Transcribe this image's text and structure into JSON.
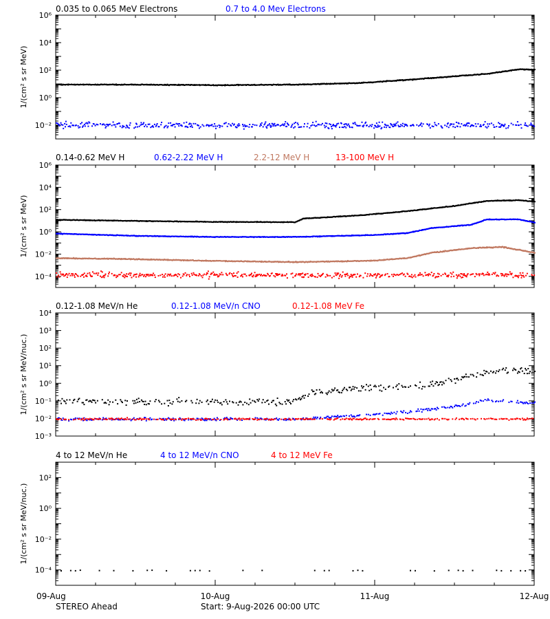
{
  "footer": {
    "spacecraft": "STEREO Ahead",
    "start": "Start:  9-Aug-2026 00:00 UTC"
  },
  "colors": {
    "black": "#000000",
    "blue": "#0000ff",
    "tan": "#c07860",
    "red": "#ff0000"
  },
  "x_tick_labels": [
    "09-Aug",
    "10-Aug",
    "11-Aug",
    "12-Aug"
  ],
  "chart_data": [
    {
      "type": "scatter",
      "panel": "electrons",
      "ylabel": "1/(cm² s sr MeV)",
      "yscale": "log",
      "ylim": [
        0.001,
        1000000
      ],
      "y_tick_exponents": [
        -2,
        0,
        2,
        4,
        6
      ],
      "x_ticks_days": [
        0,
        1,
        2,
        3
      ],
      "series": [
        {
          "name": "0.035 to 0.065 MeV Electrons",
          "color": "black",
          "style": "dense",
          "scatter": 0.03,
          "points": [
            [
              0,
              10
            ],
            [
              0.5,
              10
            ],
            [
              1,
              9
            ],
            [
              1.5,
              10
            ],
            [
              1.9,
              13
            ],
            [
              2.2,
              22
            ],
            [
              2.35,
              30
            ],
            [
              2.5,
              40
            ],
            [
              2.7,
              60
            ],
            [
              2.9,
              130
            ],
            [
              3.0,
              120
            ]
          ]
        },
        {
          "name": "0.7 to 4.0 Mev Electrons",
          "color": "blue",
          "style": "noisy",
          "scatter": 0.22,
          "points": [
            [
              0,
              0.011
            ],
            [
              1,
              0.011
            ],
            [
              2,
              0.011
            ],
            [
              3,
              0.011
            ]
          ]
        }
      ]
    },
    {
      "type": "scatter",
      "panel": "protons",
      "ylabel": "1/(cm² s sr MeV)",
      "yscale": "log",
      "ylim": [
        1e-05,
        1000000
      ],
      "y_tick_exponents": [
        -4,
        -2,
        0,
        2,
        4,
        6
      ],
      "x_ticks_days": [
        0,
        1,
        2,
        3
      ],
      "series": [
        {
          "name": "0.14-0.62 MeV H",
          "color": "black",
          "style": "dense",
          "scatter": 0.03,
          "points": [
            [
              0,
              14
            ],
            [
              0.5,
              11
            ],
            [
              1,
              9
            ],
            [
              1.5,
              8.5
            ],
            [
              1.55,
              18
            ],
            [
              1.9,
              35
            ],
            [
              2.1,
              60
            ],
            [
              2.3,
              120
            ],
            [
              2.5,
              250
            ],
            [
              2.7,
              700
            ],
            [
              2.9,
              800
            ],
            [
              3.0,
              600
            ]
          ]
        },
        {
          "name": "0.62-2.22 MeV H",
          "color": "blue",
          "style": "dense",
          "scatter": 0.03,
          "points": [
            [
              0,
              0.8
            ],
            [
              0.5,
              0.5
            ],
            [
              1,
              0.4
            ],
            [
              1.5,
              0.4
            ],
            [
              2.0,
              0.6
            ],
            [
              2.2,
              0.9
            ],
            [
              2.35,
              2.5
            ],
            [
              2.6,
              5
            ],
            [
              2.7,
              15
            ],
            [
              2.9,
              15
            ],
            [
              3.0,
              8
            ]
          ]
        },
        {
          "name": "2.2-12 MeV H",
          "color": "tan",
          "style": "dense",
          "scatter": 0.04,
          "points": [
            [
              0,
              0.005
            ],
            [
              0.5,
              0.004
            ],
            [
              1,
              0.0028
            ],
            [
              1.5,
              0.0022
            ],
            [
              2.0,
              0.003
            ],
            [
              2.2,
              0.005
            ],
            [
              2.35,
              0.015
            ],
            [
              2.6,
              0.04
            ],
            [
              2.8,
              0.05
            ],
            [
              3.0,
              0.015
            ]
          ]
        },
        {
          "name": "13-100 MeV H",
          "color": "red",
          "style": "noisy",
          "scatter": 0.25,
          "points": [
            [
              0,
              0.00015
            ],
            [
              3.0,
              0.00015
            ]
          ]
        }
      ]
    },
    {
      "type": "scatter",
      "panel": "heavy-low",
      "ylabel": "1/(cm² s sr MeV/nuc.)",
      "yscale": "log",
      "ylim": [
        0.001,
        10000
      ],
      "y_tick_exponents": [
        -3,
        -2,
        -1,
        0,
        1,
        2,
        3,
        4
      ],
      "x_ticks_days": [
        0,
        1,
        2,
        3
      ],
      "series": [
        {
          "name": "0.12-1.08 MeV/n He",
          "color": "black",
          "style": "sparse",
          "scatter": 0.2,
          "points": [
            [
              0,
              0.1
            ],
            [
              1.0,
              0.1
            ],
            [
              1.5,
              0.1
            ],
            [
              1.6,
              0.3
            ],
            [
              2.0,
              0.7
            ],
            [
              2.3,
              0.8
            ],
            [
              2.5,
              1.5
            ],
            [
              2.6,
              3
            ],
            [
              2.8,
              6
            ],
            [
              3.0,
              5
            ]
          ]
        },
        {
          "name": "0.12-1.08 MeV/n CNO",
          "color": "blue",
          "style": "sparse",
          "scatter": 0.08,
          "points": [
            [
              0,
              0.01
            ],
            [
              1.5,
              0.01
            ],
            [
              2.0,
              0.018
            ],
            [
              2.5,
              0.05
            ],
            [
              2.7,
              0.12
            ],
            [
              3.0,
              0.08
            ]
          ]
        },
        {
          "name": "0.12-1.08 MeV Fe",
          "color": "red",
          "style": "sparse",
          "scatter": 0.05,
          "points": [
            [
              0,
              0.01
            ],
            [
              3.0,
              0.01
            ]
          ]
        }
      ]
    },
    {
      "type": "scatter",
      "panel": "heavy-high",
      "ylabel": "1/(cm² s sr MeV/nuc.)",
      "yscale": "log",
      "ylim": [
        1e-05,
        1000
      ],
      "y_tick_exponents": [
        -4,
        -2,
        0,
        2
      ],
      "x_ticks_days": [
        0,
        1,
        2,
        3
      ],
      "series": [
        {
          "name": "4 to 12 MeV/n He",
          "color": "black",
          "style": "very-sparse",
          "scatter": 0.03,
          "points": [
            [
              0,
              0.0001
            ],
            [
              3.0,
              0.0001
            ]
          ]
        },
        {
          "name": "4 to 12 MeV/n CNO",
          "color": "blue",
          "style": "none",
          "points": []
        },
        {
          "name": "4 to 12 MeV Fe",
          "color": "red",
          "style": "none",
          "points": []
        }
      ]
    }
  ]
}
